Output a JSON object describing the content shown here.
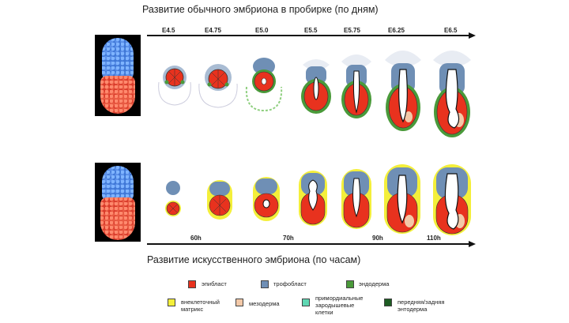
{
  "titles": {
    "top": "Развитие обычного эмбриона в пробирке (по дням)",
    "bottom": "Развитие искусственного эмбриона (по часам)"
  },
  "top_axis": {
    "ticks": [
      "E4.5",
      "E4.75",
      "E5.0",
      "E5.5",
      "E5.75",
      "E6.25",
      "E6.5"
    ]
  },
  "bottom_axis": {
    "ticks": [
      "60h",
      "70h",
      "90h",
      "110h"
    ]
  },
  "legend": [
    {
      "label": "эпибласт",
      "color": "#e8321e"
    },
    {
      "label": "трофобласт",
      "color": "#6f8fb5"
    },
    {
      "label": "эндодерма",
      "color": "#4a9a3a"
    },
    {
      "label": "внеклеточный матрикс",
      "color": "#f4ef3a"
    },
    {
      "label": "мезодерма",
      "color": "#f3c9a8"
    },
    {
      "label": "примордиальные зародышевые клетки",
      "color": "#5fd7b3"
    },
    {
      "label": "передняя/задняя энтодерма",
      "color": "#1e5c23"
    }
  ],
  "colors": {
    "epiblast": "#e8321e",
    "trophoblast": "#6f8fb5",
    "endoderm": "#4a9a3a",
    "matrix": "#f4ef3a",
    "mesoderm": "#f3c9a8"
  }
}
